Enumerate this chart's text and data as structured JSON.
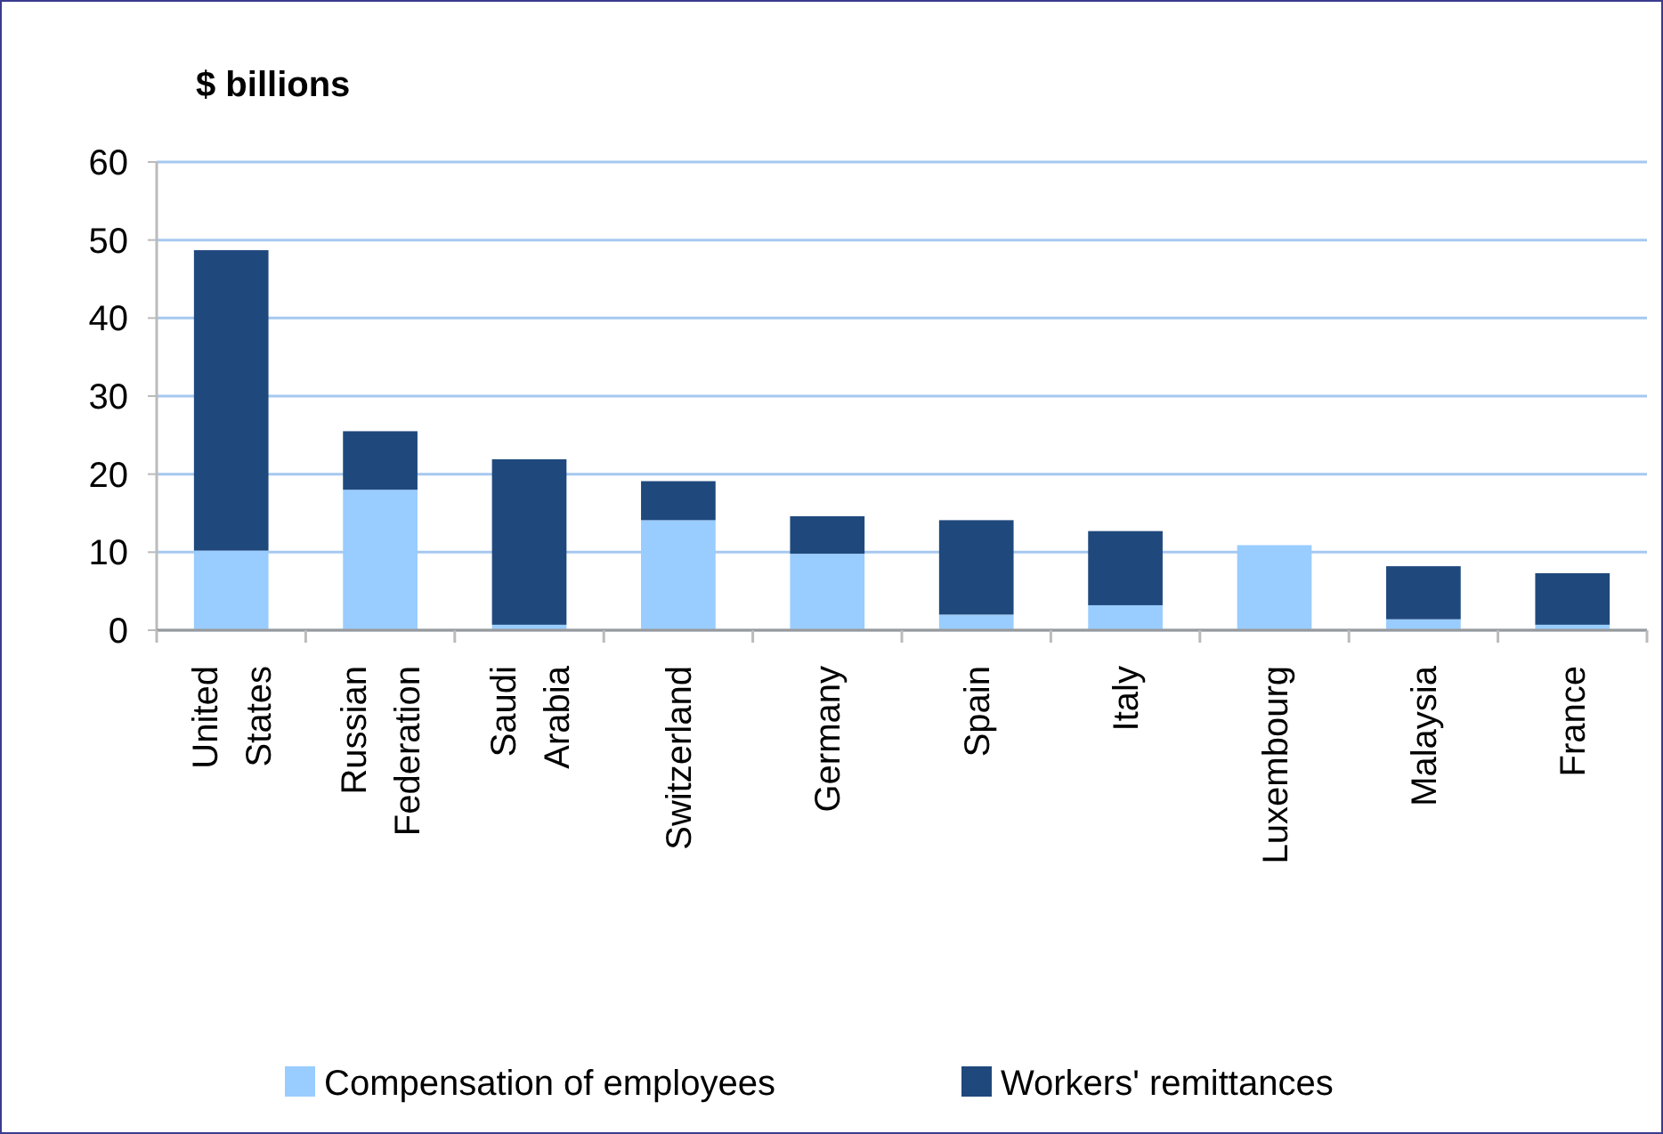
{
  "chart_data": {
    "type": "bar",
    "ylabel": "$ billions",
    "stacked": true,
    "categories": [
      "United States",
      "Russian Federation",
      "Saudi Arabia",
      "Switzerland",
      "Germany",
      "Spain",
      "Italy",
      "Luxembourg",
      "Malaysia",
      "France"
    ],
    "series": [
      {
        "name": "Compensation of employees",
        "color": "#99ccff",
        "values": [
          10.2,
          18.0,
          0.7,
          14.1,
          9.8,
          2.0,
          3.2,
          10.9,
          1.4,
          0.7
        ]
      },
      {
        "name": "Workers' remittances",
        "color": "#1f497d",
        "values": [
          38.5,
          7.5,
          21.2,
          5.0,
          4.8,
          12.1,
          9.5,
          0,
          6.8,
          6.6
        ]
      }
    ],
    "ylim": [
      0,
      60
    ],
    "yticks": [
      0,
      10,
      20,
      30,
      40,
      50,
      60
    ],
    "grid": "y",
    "legend": "bottom"
  }
}
